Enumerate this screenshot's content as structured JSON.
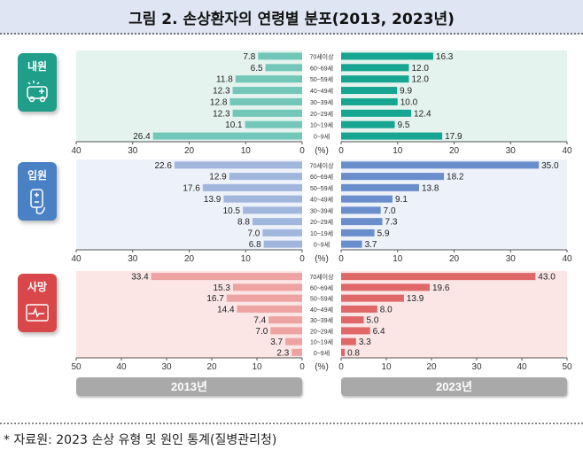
{
  "title": "그림 2. 손상환자의 연령별 분포(2013, 2023년)",
  "footer": "* 자료원: 2023 손상 유형 및 원인 통계(질병관리청)",
  "chart_data": [
    {
      "type": "bar",
      "orientation": "horizontal-butterfly",
      "panel_label": "내원",
      "icon": "ambulance-icon",
      "colors": {
        "bg": "#e4f3ee",
        "left": "#72c7b9",
        "right": "#16a590",
        "badge": "#1f9e8a"
      },
      "categories": [
        "70세이상",
        "60~69세",
        "50~59세",
        "40~49세",
        "30~39세",
        "20~29세",
        "10~19세",
        "0~9세"
      ],
      "unit": "(%)",
      "xlim": [
        0,
        40
      ],
      "ticks": [
        0,
        10,
        20,
        30,
        40
      ],
      "series": [
        {
          "name": "2013년",
          "values": [
            7.8,
            6.5,
            11.8,
            12.3,
            12.8,
            12.3,
            10.1,
            26.4
          ]
        },
        {
          "name": "2023년",
          "values": [
            16.3,
            12.0,
            12.0,
            9.9,
            10.0,
            12.4,
            9.5,
            17.9
          ]
        }
      ]
    },
    {
      "type": "bar",
      "orientation": "horizontal-butterfly",
      "panel_label": "입원",
      "icon": "iv-bag-icon",
      "colors": {
        "bg": "#edf1fa",
        "left": "#a1b6dd",
        "right": "#6a8ecb",
        "badge": "#4a80c4"
      },
      "categories": [
        "70세이상",
        "60~69세",
        "50~59세",
        "40~49세",
        "30~39세",
        "20~29세",
        "10~19세",
        "0~9세"
      ],
      "unit": "(%)",
      "xlim": [
        0,
        40
      ],
      "ticks": [
        0,
        10,
        20,
        30,
        40
      ],
      "series": [
        {
          "name": "2013년",
          "values": [
            22.6,
            12.9,
            17.6,
            13.9,
            10.5,
            8.8,
            7.0,
            6.8
          ]
        },
        {
          "name": "2023년",
          "values": [
            35.0,
            18.2,
            13.8,
            9.1,
            7.0,
            7.3,
            5.9,
            3.7
          ]
        }
      ]
    },
    {
      "type": "bar",
      "orientation": "horizontal-butterfly",
      "panel_label": "사망",
      "icon": "heart-monitor-icon",
      "colors": {
        "bg": "#fbe5e5",
        "left": "#eea2a2",
        "right": "#df6767",
        "badge": "#d9474a"
      },
      "categories": [
        "70세이상",
        "60~69세",
        "50~59세",
        "40~49세",
        "30~39세",
        "20~29세",
        "10~19세",
        "0~9세"
      ],
      "unit": "(%)",
      "xlim": [
        0,
        50
      ],
      "ticks": [
        0,
        10,
        20,
        30,
        40,
        50
      ],
      "series": [
        {
          "name": "2013년",
          "values": [
            33.4,
            15.3,
            16.7,
            14.4,
            7.4,
            7.0,
            3.7,
            2.3
          ]
        },
        {
          "name": "2023년",
          "values": [
            43.0,
            19.6,
            13.9,
            8.0,
            5.0,
            6.4,
            3.3,
            0.8
          ]
        }
      ]
    }
  ],
  "year_labels": [
    "2013년",
    "2023년"
  ]
}
